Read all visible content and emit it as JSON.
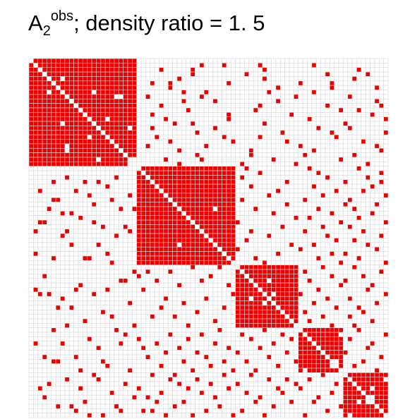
{
  "title": {
    "base": "A",
    "subscript": "2",
    "superscript": "obs",
    "rest": "; density ratio = 1. 5"
  },
  "colors": {
    "edge": "#ee0000",
    "empty": "#ffffff",
    "grid": "#d9d9d9"
  },
  "chart_data": {
    "type": "heatmap",
    "rows": 80,
    "cols": 80,
    "values": "binary adjacency matrix (1 = edge, 0 = no edge), symmetric, zero diagonal",
    "blocks": [
      {
        "start": 0,
        "end": 24
      },
      {
        "start": 24,
        "end": 46
      },
      {
        "start": 46,
        "end": 60
      },
      {
        "start": 60,
        "end": 70
      },
      {
        "start": 70,
        "end": 80
      }
    ],
    "within_block_density": 0.98,
    "between_block_edges": [
      [
        1,
        38
      ],
      [
        1,
        43
      ],
      [
        1,
        51
      ],
      [
        1,
        63
      ],
      [
        2,
        29
      ],
      [
        2,
        36
      ],
      [
        2,
        52
      ],
      [
        2,
        73
      ],
      [
        3,
        36
      ],
      [
        3,
        48
      ],
      [
        3,
        66
      ],
      [
        3,
        75
      ],
      [
        4,
        33
      ],
      [
        4,
        52
      ],
      [
        4,
        72
      ],
      [
        5,
        27
      ],
      [
        5,
        31
      ],
      [
        5,
        44
      ],
      [
        5,
        60
      ],
      [
        5,
        67
      ],
      [
        6,
        31
      ],
      [
        6,
        55
      ],
      [
        6,
        67
      ],
      [
        6,
        77
      ],
      [
        7,
        34
      ],
      [
        7,
        39
      ],
      [
        7,
        53
      ],
      [
        7,
        63
      ],
      [
        8,
        26
      ],
      [
        8,
        38
      ],
      [
        8,
        59
      ],
      [
        8,
        71
      ],
      [
        9,
        34
      ],
      [
        9,
        41
      ],
      [
        9,
        55
      ],
      [
        9,
        77
      ],
      [
        10,
        29
      ],
      [
        10,
        51
      ],
      [
        10,
        66
      ],
      [
        10,
        78
      ],
      [
        11,
        35
      ],
      [
        11,
        50
      ],
      [
        11,
        69
      ],
      [
        11,
        73
      ],
      [
        12,
        27
      ],
      [
        12,
        44
      ],
      [
        12,
        58
      ],
      [
        12,
        76
      ],
      [
        13,
        30
      ],
      [
        13,
        44
      ],
      [
        13,
        62
      ],
      [
        13,
        79
      ],
      [
        14,
        32
      ],
      [
        14,
        36
      ],
      [
        14,
        52
      ],
      [
        14,
        70
      ],
      [
        15,
        27
      ],
      [
        15,
        41
      ],
      [
        15,
        64
      ],
      [
        15,
        71
      ],
      [
        16,
        37
      ],
      [
        16,
        56
      ],
      [
        16,
        67
      ],
      [
        16,
        79
      ],
      [
        17,
        28
      ],
      [
        17,
        43
      ],
      [
        17,
        51
      ],
      [
        17,
        68
      ],
      [
        18,
        31
      ],
      [
        18,
        45
      ],
      [
        18,
        57
      ],
      [
        18,
        74
      ],
      [
        19,
        26
      ],
      [
        19,
        39
      ],
      [
        19,
        60
      ],
      [
        19,
        77
      ],
      [
        20,
        33
      ],
      [
        20,
        49
      ],
      [
        20,
        63
      ],
      [
        20,
        78
      ],
      [
        21,
        37
      ],
      [
        21,
        49
      ],
      [
        21,
        61
      ],
      [
        21,
        72
      ],
      [
        22,
        30
      ],
      [
        22,
        38
      ],
      [
        22,
        54
      ],
      [
        22,
        69
      ],
      [
        23,
        33
      ],
      [
        23,
        47
      ],
      [
        23,
        59
      ],
      [
        23,
        75
      ],
      [
        24,
        48
      ],
      [
        24,
        62
      ],
      [
        24,
        73
      ],
      [
        25,
        51
      ],
      [
        25,
        64
      ],
      [
        25,
        78
      ],
      [
        26,
        47
      ],
      [
        26,
        66
      ],
      [
        26,
        75
      ],
      [
        27,
        57
      ],
      [
        27,
        70
      ],
      [
        27,
        78
      ],
      [
        28,
        49
      ],
      [
        28,
        63
      ],
      [
        28,
        76
      ],
      [
        29,
        55
      ],
      [
        29,
        68
      ],
      [
        29,
        74
      ],
      [
        30,
        53
      ],
      [
        30,
        65
      ],
      [
        30,
        79
      ],
      [
        31,
        47
      ],
      [
        31,
        61
      ],
      [
        31,
        71
      ],
      [
        32,
        57
      ],
      [
        32,
        70
      ],
      [
        32,
        77
      ],
      [
        33,
        50
      ],
      [
        33,
        64
      ],
      [
        33,
        72
      ],
      [
        34,
        54
      ],
      [
        34,
        67
      ],
      [
        34,
        76
      ],
      [
        35,
        59
      ],
      [
        35,
        62
      ],
      [
        35,
        73
      ],
      [
        36,
        46
      ],
      [
        36,
        69
      ],
      [
        36,
        79
      ],
      [
        37,
        56
      ],
      [
        37,
        65
      ],
      [
        37,
        71
      ],
      [
        38,
        49
      ],
      [
        38,
        61
      ],
      [
        38,
        74
      ],
      [
        39,
        53
      ],
      [
        39,
        66
      ],
      [
        39,
        78
      ],
      [
        40,
        48
      ],
      [
        40,
        68
      ],
      [
        40,
        72
      ],
      [
        41,
        58
      ],
      [
        41,
        63
      ],
      [
        41,
        75
      ],
      [
        42,
        46
      ],
      [
        42,
        60
      ],
      [
        42,
        77
      ],
      [
        43,
        55
      ],
      [
        43,
        67
      ],
      [
        43,
        70
      ],
      [
        44,
        50
      ],
      [
        44,
        64
      ],
      [
        44,
        73
      ],
      [
        45,
        52
      ],
      [
        45,
        69
      ],
      [
        45,
        79
      ],
      [
        46,
        65
      ],
      [
        46,
        72
      ],
      [
        47,
        61
      ],
      [
        47,
        78
      ],
      [
        48,
        67
      ],
      [
        48,
        74
      ],
      [
        49,
        62
      ],
      [
        49,
        70
      ],
      [
        50,
        69
      ],
      [
        50,
        76
      ],
      [
        51,
        64
      ],
      [
        51,
        75
      ],
      [
        52,
        60
      ],
      [
        52,
        79
      ],
      [
        53,
        66
      ],
      [
        53,
        71
      ],
      [
        54,
        63
      ],
      [
        54,
        77
      ],
      [
        55,
        68
      ],
      [
        55,
        73
      ],
      [
        56,
        61
      ],
      [
        56,
        74
      ],
      [
        57,
        65
      ],
      [
        57,
        71
      ],
      [
        58,
        62
      ],
      [
        58,
        76
      ],
      [
        59,
        67
      ],
      [
        59,
        72
      ],
      [
        60,
        73
      ],
      [
        61,
        79
      ],
      [
        62,
        71
      ],
      [
        63,
        76
      ],
      [
        64,
        75
      ],
      [
        65,
        70
      ],
      [
        66,
        78
      ],
      [
        67,
        74
      ],
      [
        68,
        72
      ],
      [
        69,
        77
      ]
    ]
  }
}
